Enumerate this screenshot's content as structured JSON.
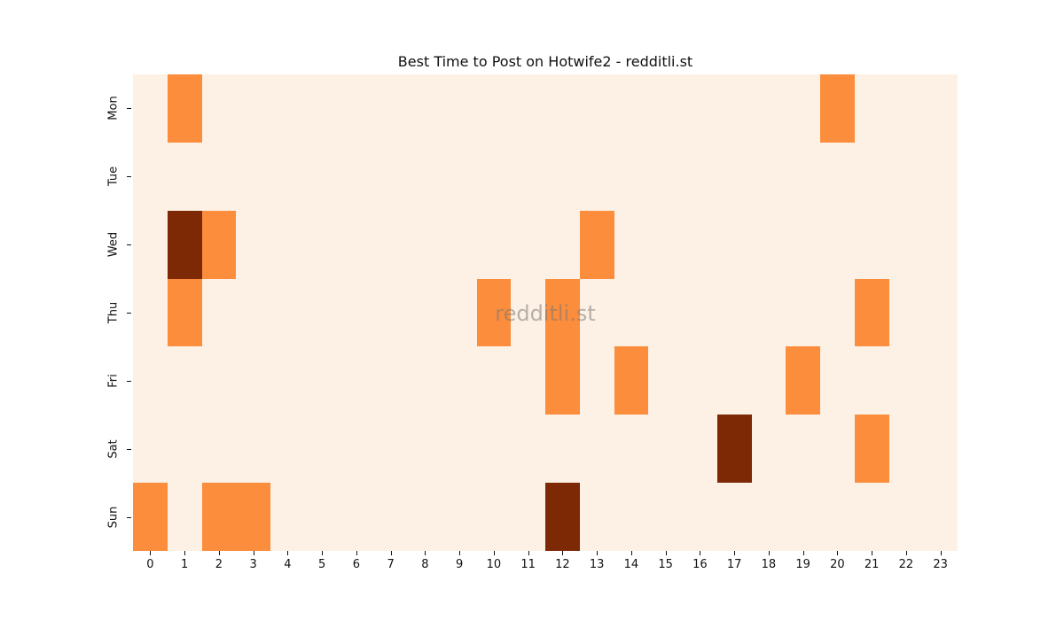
{
  "title": "Best Time to Post on Hotwife2 - redditli.st",
  "watermark": "redditli.st",
  "chart_data": {
    "type": "heatmap",
    "title": "Best Time to Post on Hotwife2 - redditli.st",
    "xlabel": "",
    "ylabel": "",
    "x_categories": [
      "0",
      "1",
      "2",
      "3",
      "4",
      "5",
      "6",
      "7",
      "8",
      "9",
      "10",
      "11",
      "12",
      "13",
      "14",
      "15",
      "16",
      "17",
      "18",
      "19",
      "20",
      "21",
      "22",
      "23"
    ],
    "y_categories": [
      "Mon",
      "Tue",
      "Wed",
      "Thu",
      "Fri",
      "Sat",
      "Sun"
    ],
    "value_range": [
      0,
      2
    ],
    "colormap": "Oranges",
    "color_scale": [
      "#fdf1e5",
      "#fb8d3c",
      "#7e2906"
    ],
    "grid": false,
    "legend": false,
    "values": [
      [
        0,
        1,
        0,
        0,
        0,
        0,
        0,
        0,
        0,
        0,
        0,
        0,
        0,
        0,
        0,
        0,
        0,
        0,
        0,
        0,
        1,
        0,
        0,
        0
      ],
      [
        0,
        0,
        0,
        0,
        0,
        0,
        0,
        0,
        0,
        0,
        0,
        0,
        0,
        0,
        0,
        0,
        0,
        0,
        0,
        0,
        0,
        0,
        0,
        0
      ],
      [
        0,
        2,
        1,
        0,
        0,
        0,
        0,
        0,
        0,
        0,
        0,
        0,
        0,
        1,
        0,
        0,
        0,
        0,
        0,
        0,
        0,
        0,
        0,
        0
      ],
      [
        0,
        1,
        0,
        0,
        0,
        0,
        0,
        0,
        0,
        0,
        1,
        0,
        1,
        0,
        0,
        0,
        0,
        0,
        0,
        0,
        0,
        1,
        0,
        0
      ],
      [
        0,
        0,
        0,
        0,
        0,
        0,
        0,
        0,
        0,
        0,
        0,
        0,
        1,
        0,
        1,
        0,
        0,
        0,
        0,
        1,
        0,
        0,
        0,
        0
      ],
      [
        0,
        0,
        0,
        0,
        0,
        0,
        0,
        0,
        0,
        0,
        0,
        0,
        0,
        0,
        0,
        0,
        0,
        2,
        0,
        0,
        0,
        1,
        0,
        0
      ],
      [
        1,
        0,
        1,
        1,
        0,
        0,
        0,
        0,
        0,
        0,
        0,
        0,
        2,
        0,
        0,
        0,
        0,
        0,
        0,
        0,
        0,
        0,
        0,
        0
      ]
    ],
    "highlight_cells": [
      {
        "day": "Mon",
        "hour": 1,
        "value": 1
      },
      {
        "day": "Mon",
        "hour": 20,
        "value": 1
      },
      {
        "day": "Wed",
        "hour": 1,
        "value": 2
      },
      {
        "day": "Wed",
        "hour": 2,
        "value": 1
      },
      {
        "day": "Wed",
        "hour": 13,
        "value": 1
      },
      {
        "day": "Thu",
        "hour": 1,
        "value": 1
      },
      {
        "day": "Thu",
        "hour": 10,
        "value": 1
      },
      {
        "day": "Thu",
        "hour": 12,
        "value": 1
      },
      {
        "day": "Thu",
        "hour": 21,
        "value": 1
      },
      {
        "day": "Fri",
        "hour": 12,
        "value": 1
      },
      {
        "day": "Fri",
        "hour": 14,
        "value": 1
      },
      {
        "day": "Fri",
        "hour": 19,
        "value": 1
      },
      {
        "day": "Sat",
        "hour": 17,
        "value": 2
      },
      {
        "day": "Sat",
        "hour": 21,
        "value": 1
      },
      {
        "day": "Sun",
        "hour": 0,
        "value": 1
      },
      {
        "day": "Sun",
        "hour": 2,
        "value": 1
      },
      {
        "day": "Sun",
        "hour": 3,
        "value": 1
      },
      {
        "day": "Sun",
        "hour": 12,
        "value": 2
      }
    ]
  }
}
